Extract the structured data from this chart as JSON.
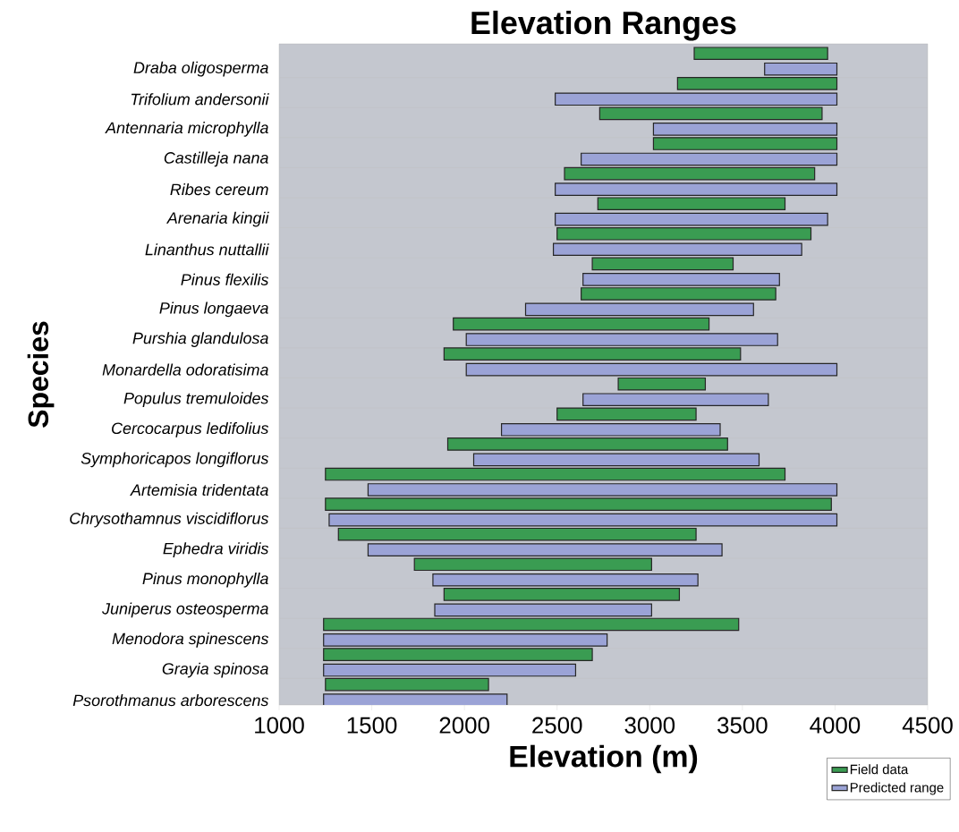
{
  "chart_data": {
    "type": "bar",
    "orientation": "horizontal",
    "title": "Elevation Ranges",
    "xlabel": "Elevation (m)",
    "ylabel": "Species",
    "categories": [
      "Draba oligosperma",
      "Trifolium andersonii",
      "Antennaria microphylla",
      "Castilleja nana",
      "Ribes cereum",
      "Arenaria kingii",
      "Linanthus nuttallii",
      "Pinus flexilis",
      "Pinus longaeva",
      "Purshia glandulosa",
      "Monardella odoratisima",
      "Populus tremuloides",
      "Cercocarpus ledifolius",
      "Symphoricapos longiflorus",
      "Artemisia tridentata",
      "Chrysothamnus viscidiflorus",
      "Ephedra viridis",
      "Pinus monophylla",
      "Juniperus osteosperma",
      "Menodora spinescens",
      "Grayia spinosa",
      "Psorothmanus arborescens"
    ],
    "series": [
      {
        "name": "Field data",
        "color": "#3a9c52",
        "base": [
          3240,
          3150,
          2730,
          3020,
          2540,
          2720,
          2500,
          2690,
          2630,
          1940,
          1890,
          2830,
          2500,
          1910,
          1250,
          1250,
          1320,
          1730,
          1890,
          1240,
          1240,
          1250
        ],
        "values": [
          720,
          860,
          1200,
          990,
          1350,
          1010,
          1370,
          760,
          1050,
          1380,
          1600,
          470,
          750,
          1510,
          2480,
          2730,
          1930,
          1280,
          1270,
          2240,
          1450,
          880
        ]
      },
      {
        "name": "Predicted range",
        "color": "#9ba3d6",
        "base": [
          3620,
          2490,
          3020,
          2630,
          2490,
          2490,
          2480,
          2640,
          2330,
          2010,
          2010,
          2640,
          2200,
          2050,
          1480,
          1270,
          1480,
          1830,
          1840,
          1240,
          1240,
          1240
        ],
        "values": [
          390,
          1520,
          990,
          1380,
          1520,
          1470,
          1340,
          1060,
          1230,
          1680,
          2000,
          1000,
          1180,
          1540,
          2530,
          2740,
          1910,
          1430,
          1170,
          1530,
          1360,
          990
        ]
      }
    ],
    "xlim": [
      1000,
      4500
    ],
    "xticks": [
      1000,
      1500,
      2000,
      2500,
      3000,
      3500,
      4000,
      4500
    ],
    "grid": "y",
    "legend": "bottom right"
  }
}
